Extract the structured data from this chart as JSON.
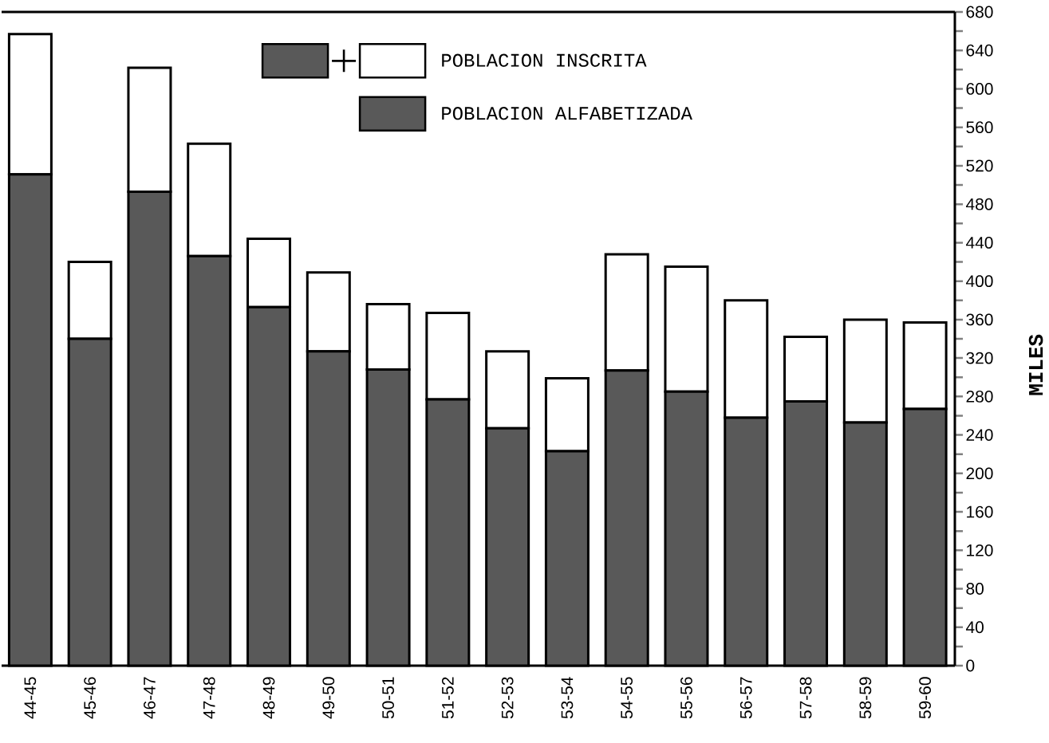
{
  "chart_data": {
    "type": "bar",
    "stacked": true,
    "ylabel": "MILES",
    "categories": [
      "44-45",
      "45-46",
      "46-47",
      "47-48",
      "48-49",
      "49-50",
      "50-51",
      "51-52",
      "52-53",
      "53-54",
      "54-55",
      "55-56",
      "56-57",
      "57-58",
      "58-59",
      "59-60"
    ],
    "series": [
      {
        "name": "POBLACION ALFABETIZADA",
        "color": "#595959",
        "values": [
          511,
          340,
          493,
          426,
          373,
          327,
          308,
          277,
          247,
          223,
          307,
          285,
          258,
          275,
          253,
          267
        ]
      },
      {
        "name": "POBLACION INSCRITA",
        "color": "#ffffff",
        "values": [
          146,
          80,
          129,
          117,
          71,
          82,
          68,
          90,
          80,
          76,
          121,
          130,
          122,
          67,
          107,
          90
        ]
      }
    ],
    "ylim": [
      0,
      680
    ],
    "yticks": [
      0,
      40,
      80,
      120,
      160,
      200,
      240,
      280,
      320,
      360,
      400,
      440,
      480,
      520,
      560,
      600,
      640,
      680
    ],
    "legend": "top"
  }
}
